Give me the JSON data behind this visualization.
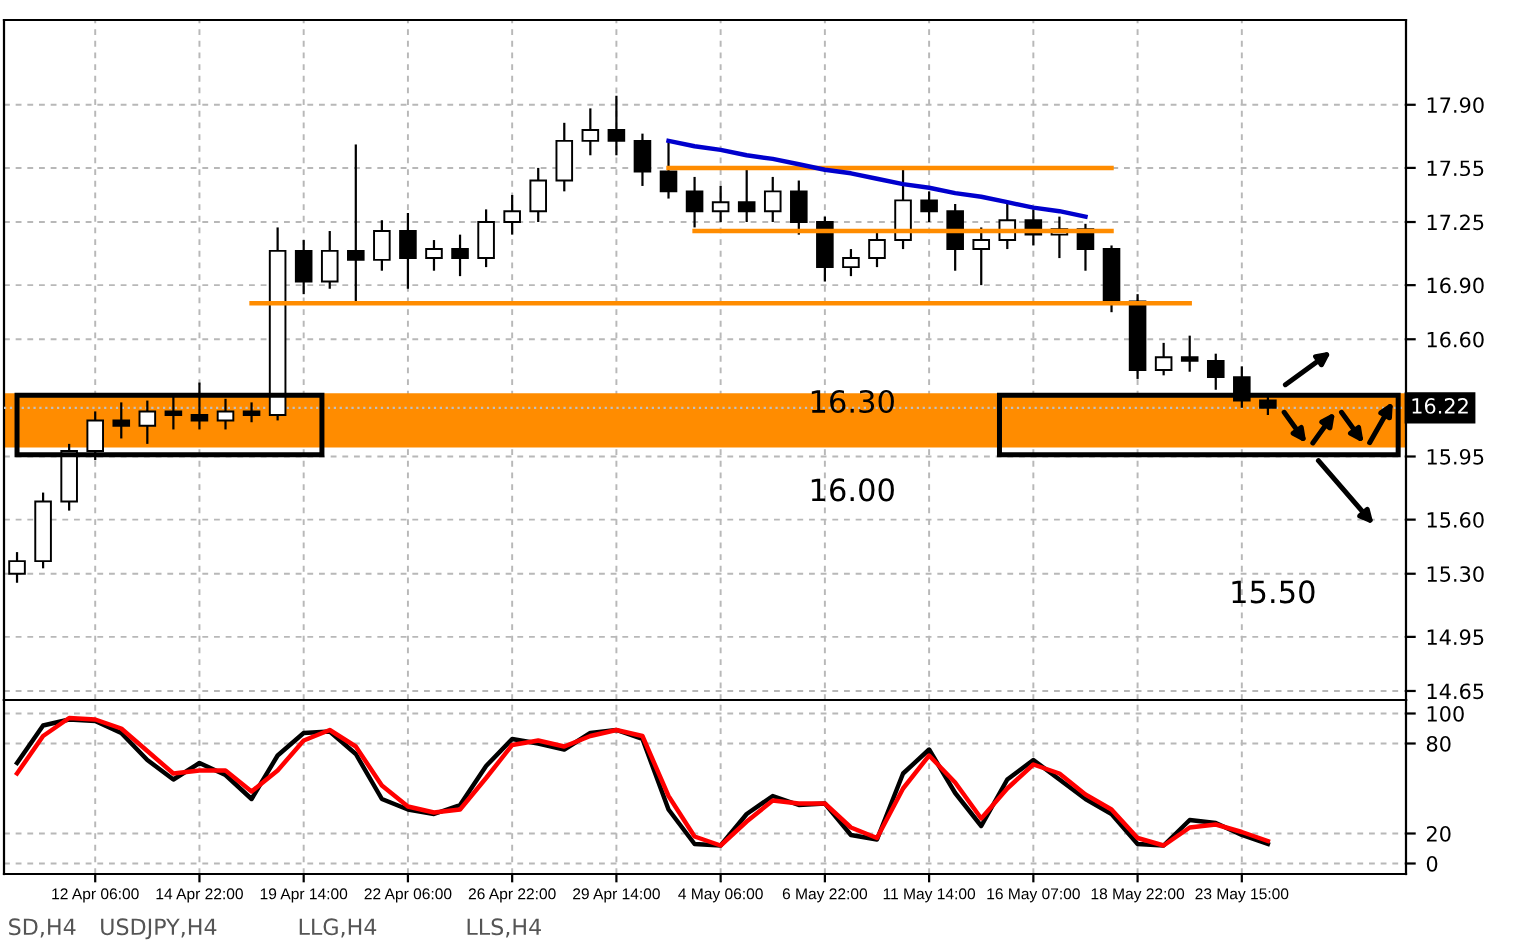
{
  "chart_data": [
    {
      "type": "candlestick",
      "categories": [
        null,
        null,
        null,
        null,
        null,
        null,
        null,
        null,
        null,
        null,
        null,
        null,
        null,
        null,
        null,
        null,
        null,
        null,
        null,
        null,
        null,
        null,
        null,
        null,
        null,
        null,
        null,
        null,
        null,
        null,
        null,
        null,
        null,
        null,
        null,
        null,
        null,
        null,
        null,
        null,
        null,
        null,
        null,
        null,
        null,
        null,
        null,
        null,
        null
      ],
      "ohlc": [
        [
          15.3,
          15.42,
          15.25,
          15.37
        ],
        [
          15.37,
          15.75,
          15.33,
          15.7
        ],
        [
          15.7,
          16.02,
          15.65,
          15.98
        ],
        [
          15.98,
          16.2,
          15.93,
          16.15
        ],
        [
          16.15,
          16.25,
          16.05,
          16.12
        ],
        [
          16.12,
          16.26,
          16.02,
          16.2
        ],
        [
          16.2,
          16.3,
          16.1,
          16.18
        ],
        [
          16.18,
          16.36,
          16.1,
          16.15
        ],
        [
          16.15,
          16.27,
          16.1,
          16.2
        ],
        [
          16.2,
          16.25,
          16.14,
          16.18
        ],
        [
          16.18,
          17.22,
          16.15,
          17.09
        ],
        [
          17.09,
          17.15,
          16.85,
          16.92
        ],
        [
          16.92,
          17.2,
          16.88,
          17.09
        ],
        [
          17.09,
          17.68,
          16.8,
          17.04
        ],
        [
          17.04,
          17.26,
          16.98,
          17.2
        ],
        [
          17.2,
          17.3,
          16.88,
          17.05
        ],
        [
          17.05,
          17.15,
          16.98,
          17.1
        ],
        [
          17.1,
          17.18,
          16.95,
          17.05
        ],
        [
          17.05,
          17.32,
          17.0,
          17.25
        ],
        [
          17.25,
          17.4,
          17.18,
          17.31
        ],
        [
          17.31,
          17.55,
          17.25,
          17.48
        ],
        [
          17.48,
          17.8,
          17.42,
          17.7
        ],
        [
          17.7,
          17.88,
          17.62,
          17.76
        ],
        [
          17.76,
          17.95,
          17.62,
          17.7
        ],
        [
          17.7,
          17.74,
          17.45,
          17.53
        ],
        [
          17.53,
          17.7,
          17.38,
          17.42
        ],
        [
          17.42,
          17.5,
          17.22,
          17.31
        ],
        [
          17.31,
          17.45,
          17.25,
          17.36
        ],
        [
          17.36,
          17.55,
          17.25,
          17.31
        ],
        [
          17.31,
          17.5,
          17.25,
          17.42
        ],
        [
          17.42,
          17.48,
          17.18,
          17.25
        ],
        [
          17.25,
          17.28,
          16.92,
          17.0
        ],
        [
          17.0,
          17.1,
          16.95,
          17.05
        ],
        [
          17.05,
          17.2,
          17.0,
          17.15
        ],
        [
          17.15,
          17.55,
          17.1,
          17.37
        ],
        [
          17.37,
          17.42,
          17.25,
          17.31
        ],
        [
          17.31,
          17.35,
          16.98,
          17.1
        ],
        [
          17.1,
          17.22,
          16.9,
          17.15
        ],
        [
          17.15,
          17.35,
          17.1,
          17.26
        ],
        [
          17.26,
          17.32,
          17.12,
          17.18
        ],
        [
          17.18,
          17.28,
          17.05,
          17.21
        ],
        [
          17.21,
          17.24,
          16.98,
          17.1
        ],
        [
          17.1,
          17.12,
          16.75,
          16.81
        ],
        [
          16.81,
          16.85,
          16.38,
          16.43
        ],
        [
          16.43,
          16.58,
          16.4,
          16.5
        ],
        [
          16.5,
          16.62,
          16.42,
          16.48
        ],
        [
          16.48,
          16.52,
          16.32,
          16.39
        ],
        [
          16.39,
          16.45,
          16.22,
          16.26
        ],
        [
          16.26,
          16.3,
          16.18,
          16.22
        ]
      ],
      "color": "#000000",
      "series": [
        {
          "type": "line",
          "color": "#ff8c00",
          "values": [
            null,
            null,
            null,
            null,
            null,
            null,
            null,
            null,
            null,
            null,
            null,
            null,
            null,
            null,
            null,
            null,
            null,
            null,
            null,
            null,
            null,
            null,
            null,
            null,
            null,
            17.55,
            17.55,
            17.55,
            17.55,
            17.55,
            17.55,
            17.55,
            17.55,
            17.55,
            17.55,
            17.55,
            17.55,
            17.55,
            17.55,
            17.55,
            17.55,
            17.55,
            17.55,
            null,
            null,
            null,
            null,
            null,
            null
          ]
        },
        {
          "type": "line",
          "color": "#ff8c00",
          "values": [
            null,
            null,
            null,
            null,
            null,
            null,
            null,
            null,
            null,
            null,
            null,
            null,
            null,
            null,
            null,
            null,
            null,
            null,
            null,
            null,
            null,
            null,
            null,
            null,
            null,
            null,
            17.2,
            17.2,
            17.2,
            17.2,
            17.2,
            17.2,
            17.2,
            17.2,
            17.2,
            17.2,
            17.2,
            17.2,
            17.2,
            17.2,
            17.2,
            17.2,
            17.2,
            null,
            null,
            null,
            null,
            null,
            null
          ]
        },
        {
          "type": "line",
          "color": "#ff8c00",
          "values": [
            null,
            null,
            null,
            null,
            null,
            null,
            null,
            null,
            null,
            16.8,
            16.8,
            16.8,
            16.8,
            16.8,
            16.8,
            16.8,
            16.8,
            16.8,
            16.8,
            16.8,
            16.8,
            16.8,
            16.8,
            16.8,
            16.8,
            16.8,
            16.8,
            16.8,
            16.8,
            16.8,
            16.8,
            16.8,
            16.8,
            16.8,
            16.8,
            16.8,
            16.8,
            16.8,
            16.8,
            16.8,
            16.8,
            16.8,
            16.8,
            16.8,
            16.8,
            16.8,
            null,
            null,
            null
          ]
        },
        {
          "type": "line",
          "color": "#0000cd",
          "values": [
            null,
            null,
            null,
            null,
            null,
            null,
            null,
            null,
            null,
            null,
            null,
            null,
            null,
            null,
            null,
            null,
            null,
            null,
            null,
            null,
            null,
            null,
            null,
            null,
            null,
            17.7,
            17.67,
            17.65,
            17.62,
            17.6,
            17.57,
            17.54,
            17.52,
            17.49,
            17.46,
            17.44,
            17.41,
            17.39,
            17.36,
            17.33,
            17.31,
            17.28,
            null,
            null,
            null,
            null,
            null,
            null,
            null
          ]
        }
      ],
      "bands": [
        {
          "axis": "y",
          "from": 16.0,
          "to": 16.3,
          "color": "#ff8c00"
        }
      ],
      "ref_lines": [
        {
          "axis": "y",
          "value": 16.22,
          "label": "16.22",
          "color": "#c0c0c0",
          "line_style": "dotted"
        }
      ],
      "annotations": [
        "16.30",
        "16.00",
        "15.50"
      ],
      "ylim": [
        14.6,
        18.37
      ],
      "yticks": [
        14.65,
        14.95,
        {
          "value": 15.3,
          "label": "15.30"
        },
        {
          "value": 15.6,
          "label": "15.60"
        },
        15.95,
        {
          "value": 16.6,
          "label": "16.60"
        },
        {
          "value": 16.9,
          "label": "16.90"
        },
        17.25,
        17.55,
        {
          "value": 17.9,
          "label": "17.90"
        }
      ],
      "grid": true,
      "tick_labels": "y"
    },
    {
      "type": "line",
      "categories": [
        null,
        null,
        null,
        "12 Apr 06:00",
        null,
        null,
        null,
        "14 Apr 22:00",
        null,
        null,
        null,
        "19 Apr 14:00",
        null,
        null,
        null,
        "22 Apr 06:00",
        null,
        null,
        null,
        "26 Apr 22:00",
        null,
        null,
        null,
        "29 Apr 14:00",
        null,
        null,
        null,
        "4 May 06:00",
        null,
        null,
        null,
        "6 May 22:00",
        null,
        null,
        null,
        "11 May 14:00",
        null,
        null,
        null,
        "16 May 07:00",
        null,
        null,
        null,
        "18 May 22:00",
        null,
        null,
        null,
        "23 May 15:00",
        null
      ],
      "series": [
        {
          "color": "#000000",
          "values": [
            67,
            92,
            96,
            95,
            87,
            69,
            56,
            67,
            59,
            43,
            72,
            87,
            88,
            73,
            43,
            36,
            33,
            39,
            65,
            83,
            80,
            76,
            87,
            89,
            83,
            36,
            13,
            12,
            33,
            45,
            39,
            40,
            19,
            16,
            60,
            76,
            47,
            25,
            56,
            69,
            56,
            43,
            33,
            13,
            12,
            29,
            27,
            19,
            13
          ]
        },
        {
          "color": "#ff0000",
          "values": [
            60,
            85,
            97,
            96,
            90,
            75,
            60,
            62,
            62,
            48,
            62,
            82,
            89,
            78,
            52,
            38,
            34,
            36,
            57,
            79,
            82,
            78,
            85,
            89,
            85,
            45,
            18,
            12,
            28,
            42,
            40,
            40,
            24,
            17,
            50,
            72,
            54,
            30,
            50,
            66,
            60,
            46,
            36,
            17,
            12,
            24,
            26,
            21,
            15
          ]
        }
      ],
      "annotations": [
        "SD,H4",
        "USDJPY,H4",
        "LLG,H4",
        "LLS,H4"
      ],
      "ylim": [
        -7,
        109
      ],
      "yticks": [
        0,
        20,
        80,
        100
      ],
      "grid": true
    }
  ]
}
